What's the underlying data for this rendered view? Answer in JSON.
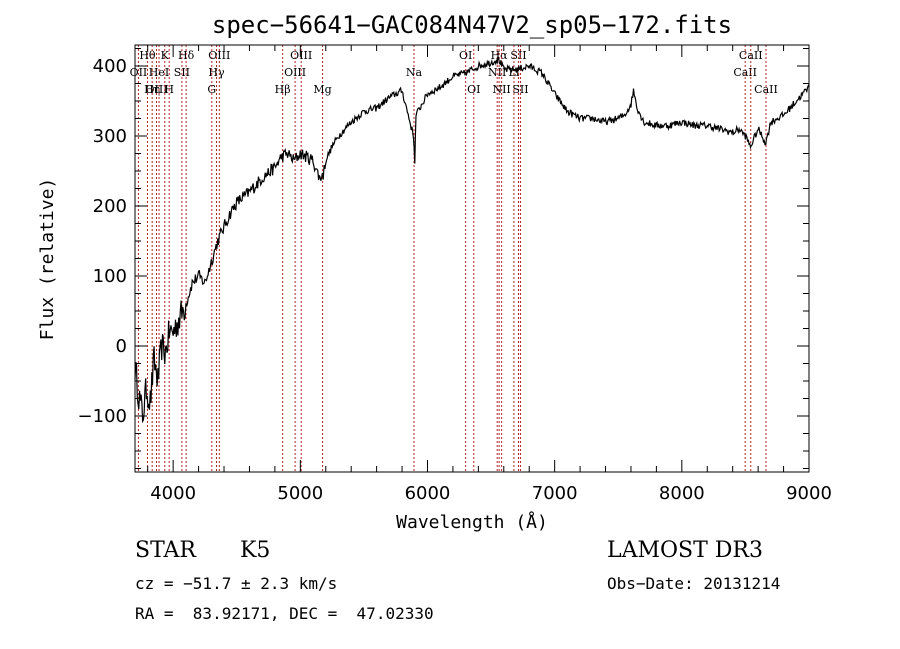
{
  "chart_data": {
    "type": "line",
    "title": "spec−56641−GAC084N47V2_sp05−172.fits",
    "xlabel": "Wavelength (Å)",
    "ylabel": "Flux (relative)",
    "xlim": [
      3700,
      9000
    ],
    "ylim": [
      -180,
      430
    ],
    "x_ticks": [
      4000,
      5000,
      6000,
      7000,
      8000,
      9000
    ],
    "y_ticks": [
      -100,
      0,
      100,
      200,
      300,
      400
    ],
    "y_tick_labels": [
      "−100",
      "0",
      "100",
      "200",
      "300",
      "400"
    ],
    "series": [
      {
        "name": "spectrum",
        "x": [
          3700,
          3730,
          3760,
          3790,
          3820,
          3850,
          3880,
          3910,
          3940,
          3970,
          4000,
          4050,
          4100,
          4150,
          4200,
          4250,
          4300,
          4350,
          4400,
          4450,
          4500,
          4600,
          4700,
          4800,
          4850,
          4900,
          4950,
          5000,
          5100,
          5150,
          5180,
          5200,
          5250,
          5300,
          5400,
          5500,
          5600,
          5700,
          5800,
          5890,
          5900,
          5910,
          6000,
          6100,
          6200,
          6300,
          6400,
          6500,
          6560,
          6600,
          6700,
          6800,
          6900,
          7000,
          7100,
          7200,
          7300,
          7400,
          7500,
          7550,
          7600,
          7620,
          7650,
          7700,
          7800,
          7900,
          8000,
          8100,
          8200,
          8300,
          8400,
          8450,
          8500,
          8540,
          8600,
          8660,
          8700,
          8800,
          8900,
          9000
        ],
        "values": [
          -30,
          -70,
          -100,
          -60,
          -80,
          -20,
          -50,
          0,
          -10,
          20,
          20,
          40,
          60,
          90,
          100,
          90,
          120,
          150,
          170,
          190,
          205,
          220,
          240,
          255,
          270,
          275,
          265,
          275,
          265,
          240,
          245,
          265,
          285,
          300,
          320,
          335,
          340,
          355,
          365,
          300,
          265,
          330,
          360,
          370,
          385,
          390,
          400,
          405,
          410,
          395,
          395,
          400,
          390,
          360,
          335,
          325,
          325,
          320,
          325,
          330,
          345,
          365,
          340,
          320,
          315,
          315,
          320,
          315,
          315,
          310,
          305,
          310,
          300,
          285,
          310,
          290,
          320,
          330,
          350,
          370
        ]
      }
    ],
    "lines": [
      {
        "w": 3727,
        "label": "OII",
        "row": 1
      },
      {
        "w": 3798,
        "label": "Hθ",
        "row": 0
      },
      {
        "w": 3835,
        "label": "Hη",
        "row": 2
      },
      {
        "w": 3869,
        "label": "OIII",
        "row": 2
      },
      {
        "w": 3889,
        "label": "HeI",
        "row": 1
      },
      {
        "w": 3934,
        "label": "K",
        "row": 0
      },
      {
        "w": 3969,
        "label": "H",
        "row": 2
      },
      {
        "w": 4069,
        "label": "SII",
        "row": 1
      },
      {
        "w": 4102,
        "label": "Hδ",
        "row": 0
      },
      {
        "w": 4304,
        "label": "G",
        "row": 2
      },
      {
        "w": 4341,
        "label": "Hγ",
        "row": 1
      },
      {
        "w": 4363,
        "label": "OIII",
        "row": 0
      },
      {
        "w": 4861,
        "label": "Hβ",
        "row": 2
      },
      {
        "w": 4959,
        "label": "OIII",
        "row": 1
      },
      {
        "w": 5007,
        "label": "OIII",
        "row": 0
      },
      {
        "w": 5175,
        "label": "Mg",
        "row": 2
      },
      {
        "w": 5894,
        "label": "Na",
        "row": 1
      },
      {
        "w": 6300,
        "label": "OI",
        "row": 0
      },
      {
        "w": 6364,
        "label": "OI",
        "row": 2
      },
      {
        "w": 6548,
        "label": "NII",
        "row": 1
      },
      {
        "w": 6563,
        "label": "Hα",
        "row": 0
      },
      {
        "w": 6583,
        "label": "NII",
        "row": 2
      },
      {
        "w": 6680,
        "label": "Li",
        "row": 1
      },
      {
        "w": 6716,
        "label": "SII",
        "row": 0
      },
      {
        "w": 6731,
        "label": "SII",
        "row": 2
      },
      {
        "w": 8498,
        "label": "CaII",
        "row": 1
      },
      {
        "w": 8542,
        "label": "CaII",
        "row": 0
      },
      {
        "w": 8662,
        "label": "CaII",
        "row": 2
      }
    ]
  },
  "info": {
    "class_label": "STAR",
    "subclass": "K5",
    "survey": "LAMOST DR3",
    "cz": "cz = −51.7 ± 2.3 km/s",
    "obs_date": "Obs−Date: 20131214",
    "coords": "RA =  83.92171, DEC =  47.02330"
  }
}
